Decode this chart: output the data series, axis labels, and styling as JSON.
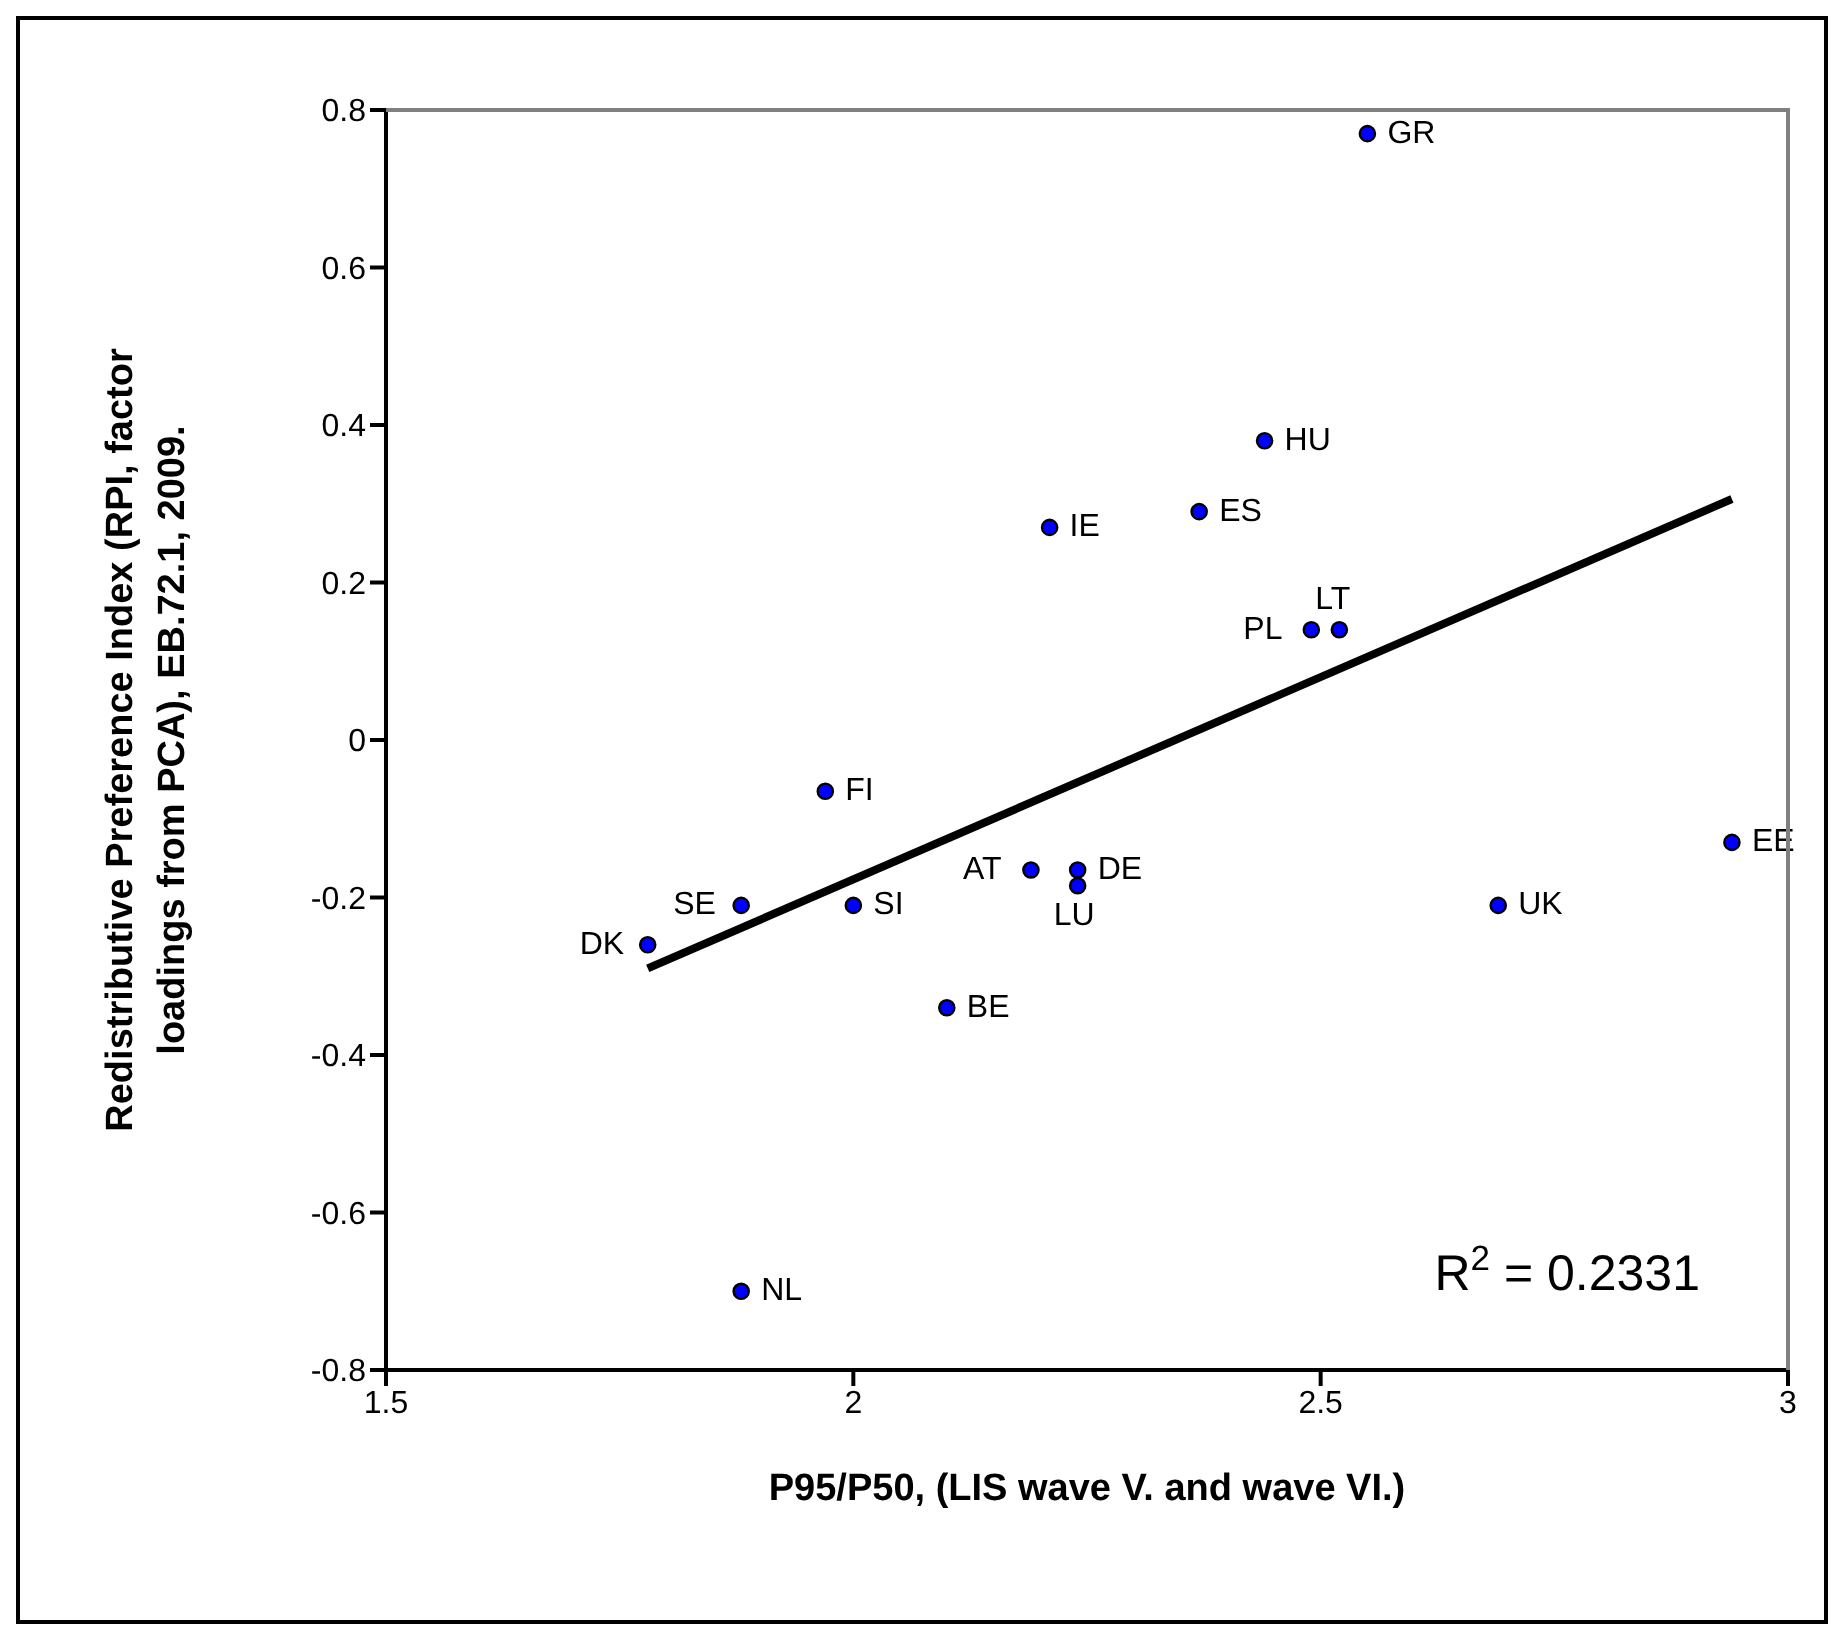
{
  "chart_data": {
    "type": "scatter",
    "xlabel": "P95/P50, (LIS wave V. and wave VI.)",
    "ylabel": "Redistributive Preference Index (RPI, factor loadings from PCA), EB.72.1, 2009.",
    "xlim": [
      1.5,
      3
    ],
    "xticks": [
      1.5,
      2,
      2.5,
      3
    ],
    "ylim": [
      -0.8,
      0.8
    ],
    "yticks": [
      -0.8,
      -0.6,
      -0.4,
      -0.2,
      0,
      0.2,
      0.4,
      0.6,
      0.8
    ],
    "marker": "circle",
    "series": [
      {
        "name": "GR",
        "color": "#0000ff",
        "x": [
          2.55
        ],
        "values": [
          0.77
        ]
      },
      {
        "name": "HU",
        "color": "#0000ff",
        "x": [
          2.44
        ],
        "values": [
          0.38
        ]
      },
      {
        "name": "ES",
        "color": "#0000ff",
        "x": [
          2.37
        ],
        "values": [
          0.29
        ]
      },
      {
        "name": "IE",
        "color": "#0000ff",
        "x": [
          2.21
        ],
        "values": [
          0.27
        ]
      },
      {
        "name": "PL",
        "color": "#0000ff",
        "x": [
          2.49
        ],
        "values": [
          0.14
        ]
      },
      {
        "name": "LT",
        "color": "#0000ff",
        "x": [
          2.52
        ],
        "values": [
          0.14
        ]
      },
      {
        "name": "FI",
        "color": "#0000ff",
        "x": [
          1.97
        ],
        "values": [
          -0.065
        ]
      },
      {
        "name": "EE",
        "color": "#0000ff",
        "x": [
          2.94
        ],
        "values": [
          -0.13
        ]
      },
      {
        "name": "AT",
        "color": "#0000ff",
        "x": [
          2.19
        ],
        "values": [
          -0.165
        ]
      },
      {
        "name": "DE",
        "color": "#0000ff",
        "x": [
          2.24
        ],
        "values": [
          -0.165
        ]
      },
      {
        "name": "LU",
        "color": "#0000ff",
        "x": [
          2.24
        ],
        "values": [
          -0.185
        ]
      },
      {
        "name": "SE",
        "color": "#0000ff",
        "x": [
          1.88
        ],
        "values": [
          -0.21
        ]
      },
      {
        "name": "SI",
        "color": "#0000ff",
        "x": [
          2.0
        ],
        "values": [
          -0.21
        ]
      },
      {
        "name": "UK",
        "color": "#0000ff",
        "x": [
          2.69
        ],
        "values": [
          -0.21
        ]
      },
      {
        "name": "DK",
        "color": "#0000ff",
        "x": [
          1.78
        ],
        "values": [
          -0.26
        ]
      },
      {
        "name": "BE",
        "color": "#0000ff",
        "x": [
          2.1
        ],
        "values": [
          -0.34
        ]
      },
      {
        "name": "NL",
        "color": "#0000ff",
        "x": [
          1.88
        ],
        "values": [
          -0.7
        ]
      },
      {
        "type": "line",
        "marker": "none",
        "color": "#000000",
        "x": [
          1.78,
          2.94
        ],
        "values": [
          -0.29,
          0.306
        ]
      }
    ],
    "annotations": [
      "R$^{2}$ = 0.2331"
    ]
  }
}
